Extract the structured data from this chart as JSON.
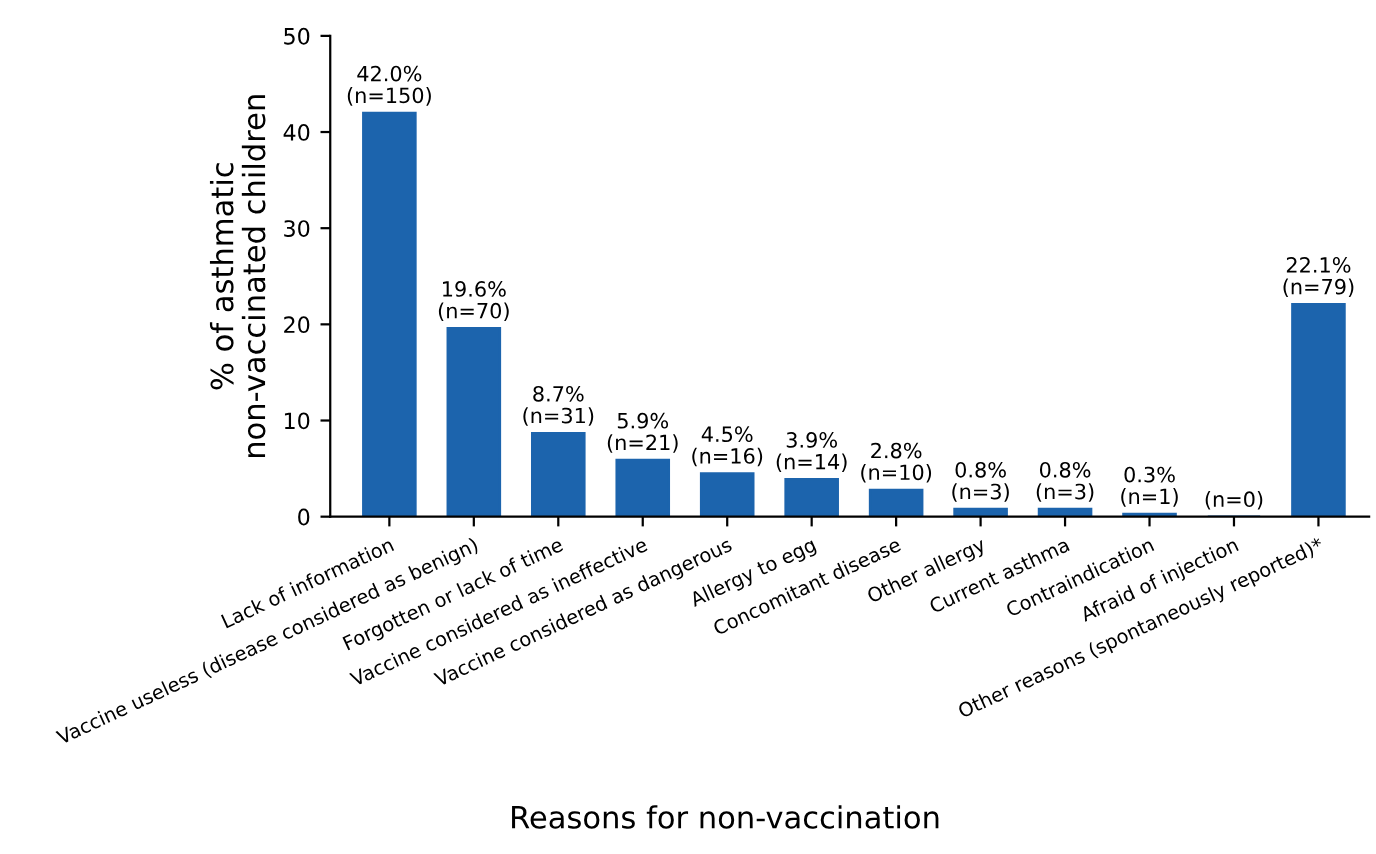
{
  "chart_data": {
    "type": "bar",
    "xlabel": "Reasons for non-vaccination",
    "ylabel": "% of asthmatic\nnon-vaccinated children",
    "categories": [
      "Lack of information",
      "Vaccine useless (disease considered as benign)",
      "Forgotten or lack of time",
      "Vaccine considered as ineffective",
      "Vaccine considered as dangerous",
      "Allergy to egg",
      "Concomitant disease",
      "Other allergy",
      "Current asthma",
      "Contraindication",
      "Afraid of injection",
      "Other reasons (spontaneously reported)*"
    ],
    "values": [
      42.0,
      19.6,
      8.7,
      5.9,
      4.5,
      3.9,
      2.8,
      0.8,
      0.8,
      0.3,
      0,
      22.1
    ],
    "value_labels": [
      "42.0%\n(n=150)",
      "19.6%\n(n=70)",
      "8.7%\n(n=31)",
      "5.9%\n(n=21)",
      "4.5%\n(n=16)",
      "3.9%\n(n=14)",
      "2.8%\n(n=10)",
      "0.8%\n(n=3)",
      "0.8%\n(n=3)",
      "0.3%\n(n=1)",
      "(n=0)",
      "22.1%\n(n=79)"
    ],
    "color": "#1c64ad",
    "ylim": [
      0,
      50
    ],
    "yticks": [
      0,
      10,
      20,
      30,
      40,
      50
    ],
    "grid": false,
    "legend": false
  }
}
